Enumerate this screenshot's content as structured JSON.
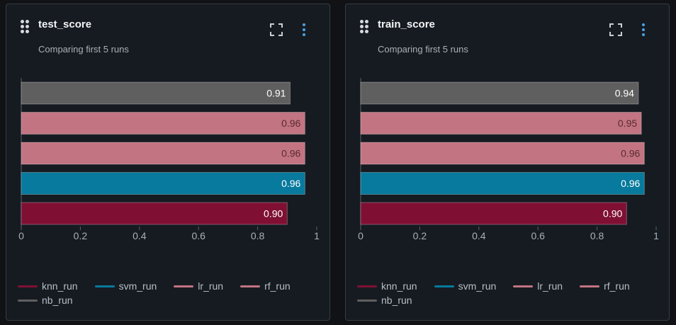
{
  "panels": [
    {
      "title": "test_score",
      "subtitle": "Comparing first 5 runs",
      "chart_data": {
        "type": "bar",
        "orientation": "horizontal",
        "title": "test_score",
        "subtitle": "Comparing first 5 runs",
        "categories": [
          "nb_run",
          "rf_run",
          "lr_run",
          "svm_run",
          "knn_run"
        ],
        "values": [
          0.91,
          0.96,
          0.96,
          0.96,
          0.9
        ],
        "labels": [
          "0.91",
          "0.96",
          "0.96",
          "0.96",
          "0.90"
        ],
        "xlim": [
          0,
          1
        ],
        "xticks": [
          "0",
          "0.2",
          "0.4",
          "0.6",
          "0.8",
          "1"
        ],
        "xlabel": "",
        "ylabel": "",
        "grid": false,
        "legend_position": "bottom"
      }
    },
    {
      "title": "train_score",
      "subtitle": "Comparing first 5 runs",
      "chart_data": {
        "type": "bar",
        "orientation": "horizontal",
        "title": "train_score",
        "subtitle": "Comparing first 5 runs",
        "categories": [
          "nb_run",
          "rf_run",
          "lr_run",
          "svm_run",
          "knn_run"
        ],
        "values": [
          0.94,
          0.95,
          0.96,
          0.96,
          0.9
        ],
        "labels": [
          "0.94",
          "0.95",
          "0.96",
          "0.96",
          "0.90"
        ],
        "xlim": [
          0,
          1
        ],
        "xticks": [
          "0",
          "0.2",
          "0.4",
          "0.6",
          "0.8",
          "1"
        ],
        "xlabel": "",
        "ylabel": "",
        "grid": false,
        "legend_position": "bottom"
      }
    }
  ],
  "runs": {
    "nb_run": {
      "color": "#5f5f5f",
      "label_color": "#ffffff"
    },
    "rf_run": {
      "color": "#c27482",
      "label_color": "#5a2a33"
    },
    "lr_run": {
      "color": "#c27482",
      "label_color": "#5a2a33"
    },
    "svm_run": {
      "color": "#077a9d",
      "label_color": "#ffffff"
    },
    "knn_run": {
      "color": "#7f1034",
      "label_color": "#ffffff"
    }
  },
  "legend": [
    {
      "name": "knn_run",
      "color": "#7f1034"
    },
    {
      "name": "svm_run",
      "color": "#077a9d"
    },
    {
      "name": "lr_run",
      "color": "#c27482"
    },
    {
      "name": "rf_run",
      "color": "#c27482"
    },
    {
      "name": "nb_run",
      "color": "#5f5f5f"
    }
  ],
  "icons": {
    "drag": "drag-handle-icon",
    "expand": "expand-icon",
    "more": "kebab-menu-icon"
  }
}
